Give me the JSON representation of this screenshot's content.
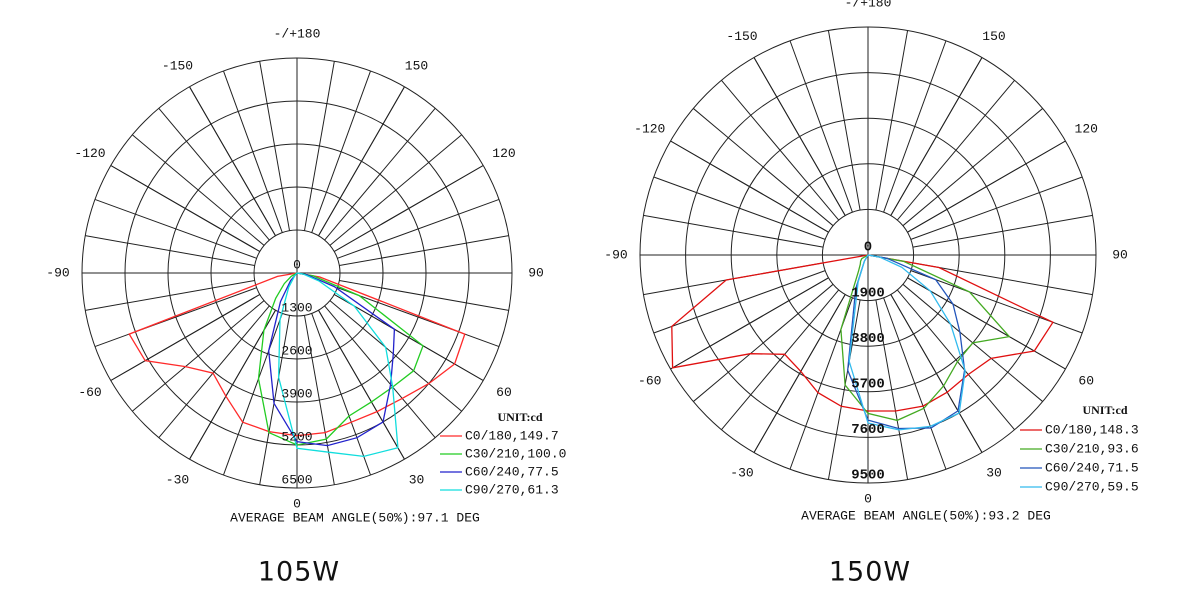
{
  "chart_data": [
    {
      "type": "polar",
      "x": [
        -90,
        -80,
        -70,
        -60,
        -50,
        -40,
        -30,
        -20,
        -10,
        0,
        10,
        20,
        30,
        40,
        50,
        60,
        70,
        80,
        90
      ],
      "xticks": [
        {
          "value": 180,
          "label": "-/+180"
        },
        -150,
        150,
        -120,
        120,
        -90,
        90,
        -60,
        60,
        -30,
        30,
        0
      ],
      "rlim": [
        0,
        6500
      ],
      "rticks": [
        0,
        1300,
        2600,
        3900,
        5200,
        6500
      ],
      "unit_label": "UNIT:cd",
      "series": [
        {
          "name": "C0/180,149.7",
          "color": "#ff2a2a",
          "values": [
            0,
            600,
            5400,
            5300,
            4400,
            3950,
            4300,
            4800,
            4870,
            4920,
            4900,
            4800,
            4840,
            4950,
            5200,
            5500,
            5400,
            700,
            0
          ]
        },
        {
          "name": "C30/210,100.0",
          "color": "#22cc22",
          "values": [
            0,
            0,
            0,
            200,
            500,
            1000,
            2000,
            3400,
            4900,
            5200,
            5100,
            4600,
            4500,
            4500,
            4600,
            4400,
            2000,
            500,
            0
          ]
        },
        {
          "name": "C60/240,77.5",
          "color": "#2222cc",
          "values": [
            0,
            0,
            0,
            0,
            0,
            300,
            1000,
            2500,
            4000,
            5100,
            5300,
            5300,
            5200,
            4400,
            3800,
            3400,
            1200,
            300,
            0
          ]
        },
        {
          "name": "C90/270,61.3",
          "color": "#11dddd",
          "values": [
            0,
            0,
            0,
            0,
            0,
            100,
            500,
            1500,
            3200,
            5300,
            5500,
            5900,
            6100,
            4500,
            3500,
            2000,
            700,
            200,
            0
          ]
        }
      ],
      "footer": "AVERAGE BEAM ANGLE(50%):97.1 DEG",
      "caption": "105W"
    },
    {
      "type": "polar",
      "x": [
        -90,
        -80,
        -70,
        -60,
        -50,
        -40,
        -30,
        -20,
        -10,
        0,
        10,
        20,
        30,
        40,
        50,
        60,
        70,
        80,
        90
      ],
      "xticks": [
        {
          "value": 180,
          "label": "-/+180"
        },
        -150,
        150,
        -120,
        120,
        -90,
        90,
        -60,
        60,
        -30,
        30,
        0
      ],
      "rlim": [
        0,
        9500
      ],
      "rticks": [
        0,
        1900,
        3800,
        5700,
        7600,
        9500
      ],
      "unit_label": "UNIT:cd",
      "series": [
        {
          "name": "C0/180,148.3",
          "color": "#e01010",
          "values": [
            0,
            6000,
            8700,
            9400,
            6400,
            5400,
            5600,
            6100,
            6400,
            6500,
            6600,
            6700,
            6600,
            6500,
            6700,
            8000,
            8200,
            3000,
            0
          ]
        },
        {
          "name": "C30/210,93.6",
          "color": "#44aa22",
          "values": [
            0,
            0,
            0,
            300,
            400,
            500,
            800,
            3300,
            5500,
            6600,
            7000,
            6800,
            6300,
            5800,
            5700,
            6800,
            4500,
            1500,
            0
          ]
        },
        {
          "name": "C60/240,71.5",
          "color": "#2255bb",
          "values": [
            0,
            0,
            0,
            0,
            0,
            0,
            300,
            1500,
            4870,
            6880,
            7340,
            7670,
            7500,
            6260,
            5000,
            4090,
            3000,
            800,
            0
          ]
        },
        {
          "name": "C90/270,59.5",
          "color": "#33bbee",
          "values": [
            0,
            0,
            0,
            0,
            0,
            0,
            300,
            1200,
            4500,
            7000,
            7400,
            7600,
            7600,
            6300,
            4500,
            3000,
            1500,
            500,
            0
          ]
        }
      ],
      "footer": "AVERAGE BEAM ANGLE(50%):93.2 DEG",
      "caption": "150W"
    }
  ]
}
